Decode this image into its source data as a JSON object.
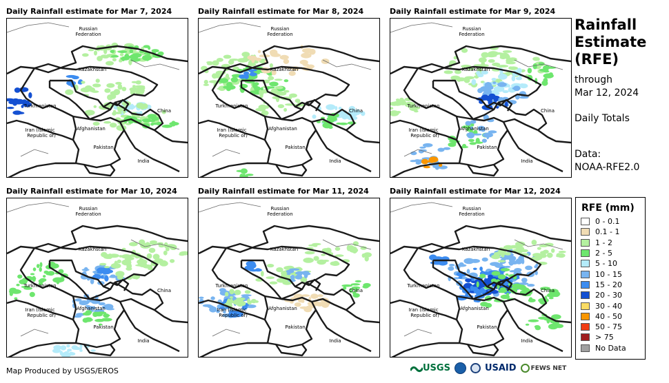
{
  "panels": [
    {
      "title": "Daily Rainfall estimate for Mar 7, 2024"
    },
    {
      "title": "Daily Rainfall estimate for Mar 8, 2024"
    },
    {
      "title": "Daily Rainfall estimate for Mar 9, 2024"
    },
    {
      "title": "Daily Rainfall estimate for Mar 10, 2024"
    },
    {
      "title": "Daily Rainfall estimate for Mar 11, 2024"
    },
    {
      "title": "Daily Rainfall estimate for Mar 12, 2024"
    }
  ],
  "map_labels": {
    "russia1": "Russian",
    "russia2": "Federation",
    "kazakhstan": "Kazakhstan",
    "turkmenistan": "Turkmenistan",
    "china": "China",
    "iran1": "Iran  (Islamic",
    "iran2": "Republic of)",
    "afghanistan": "Afghanistan",
    "pakistan": "Pakistan",
    "india": "India"
  },
  "side": {
    "title1": "Rainfall",
    "title2": "Estimate",
    "title3": "(RFE)",
    "through": "through",
    "date": "Mar 12, 2024",
    "totals": "Daily Totals",
    "data_label": "Data:",
    "data_source": "NOAA-RFE2.0"
  },
  "legend": {
    "title": "RFE (mm)",
    "items": [
      {
        "label": "0 - 0.1",
        "color": "#ffffff"
      },
      {
        "label": "0.1 - 1",
        "color": "#f0dcb4"
      },
      {
        "label": "1 - 2",
        "color": "#b4f0a0"
      },
      {
        "label": "2 - 5",
        "color": "#6ee66e"
      },
      {
        "label": "5 - 10",
        "color": "#b4ebfa"
      },
      {
        "label": "10 - 15",
        "color": "#78b4f0"
      },
      {
        "label": "15 - 20",
        "color": "#3c8cf0"
      },
      {
        "label": "20 - 30",
        "color": "#1450d2"
      },
      {
        "label": "30 - 40",
        "color": "#fadc64"
      },
      {
        "label": "40 - 50",
        "color": "#fa9600"
      },
      {
        "label": "50 - 75",
        "color": "#f03c14"
      },
      {
        "label": "> 75",
        "color": "#a01e1e"
      },
      {
        "label": "No Data",
        "color": "#a0a0a0"
      }
    ]
  },
  "credit": "Map Produced by USGS/EROS",
  "logos": {
    "usgs": "USGS",
    "usaid": "USAID",
    "fewsnet": "FEWS NET"
  }
}
